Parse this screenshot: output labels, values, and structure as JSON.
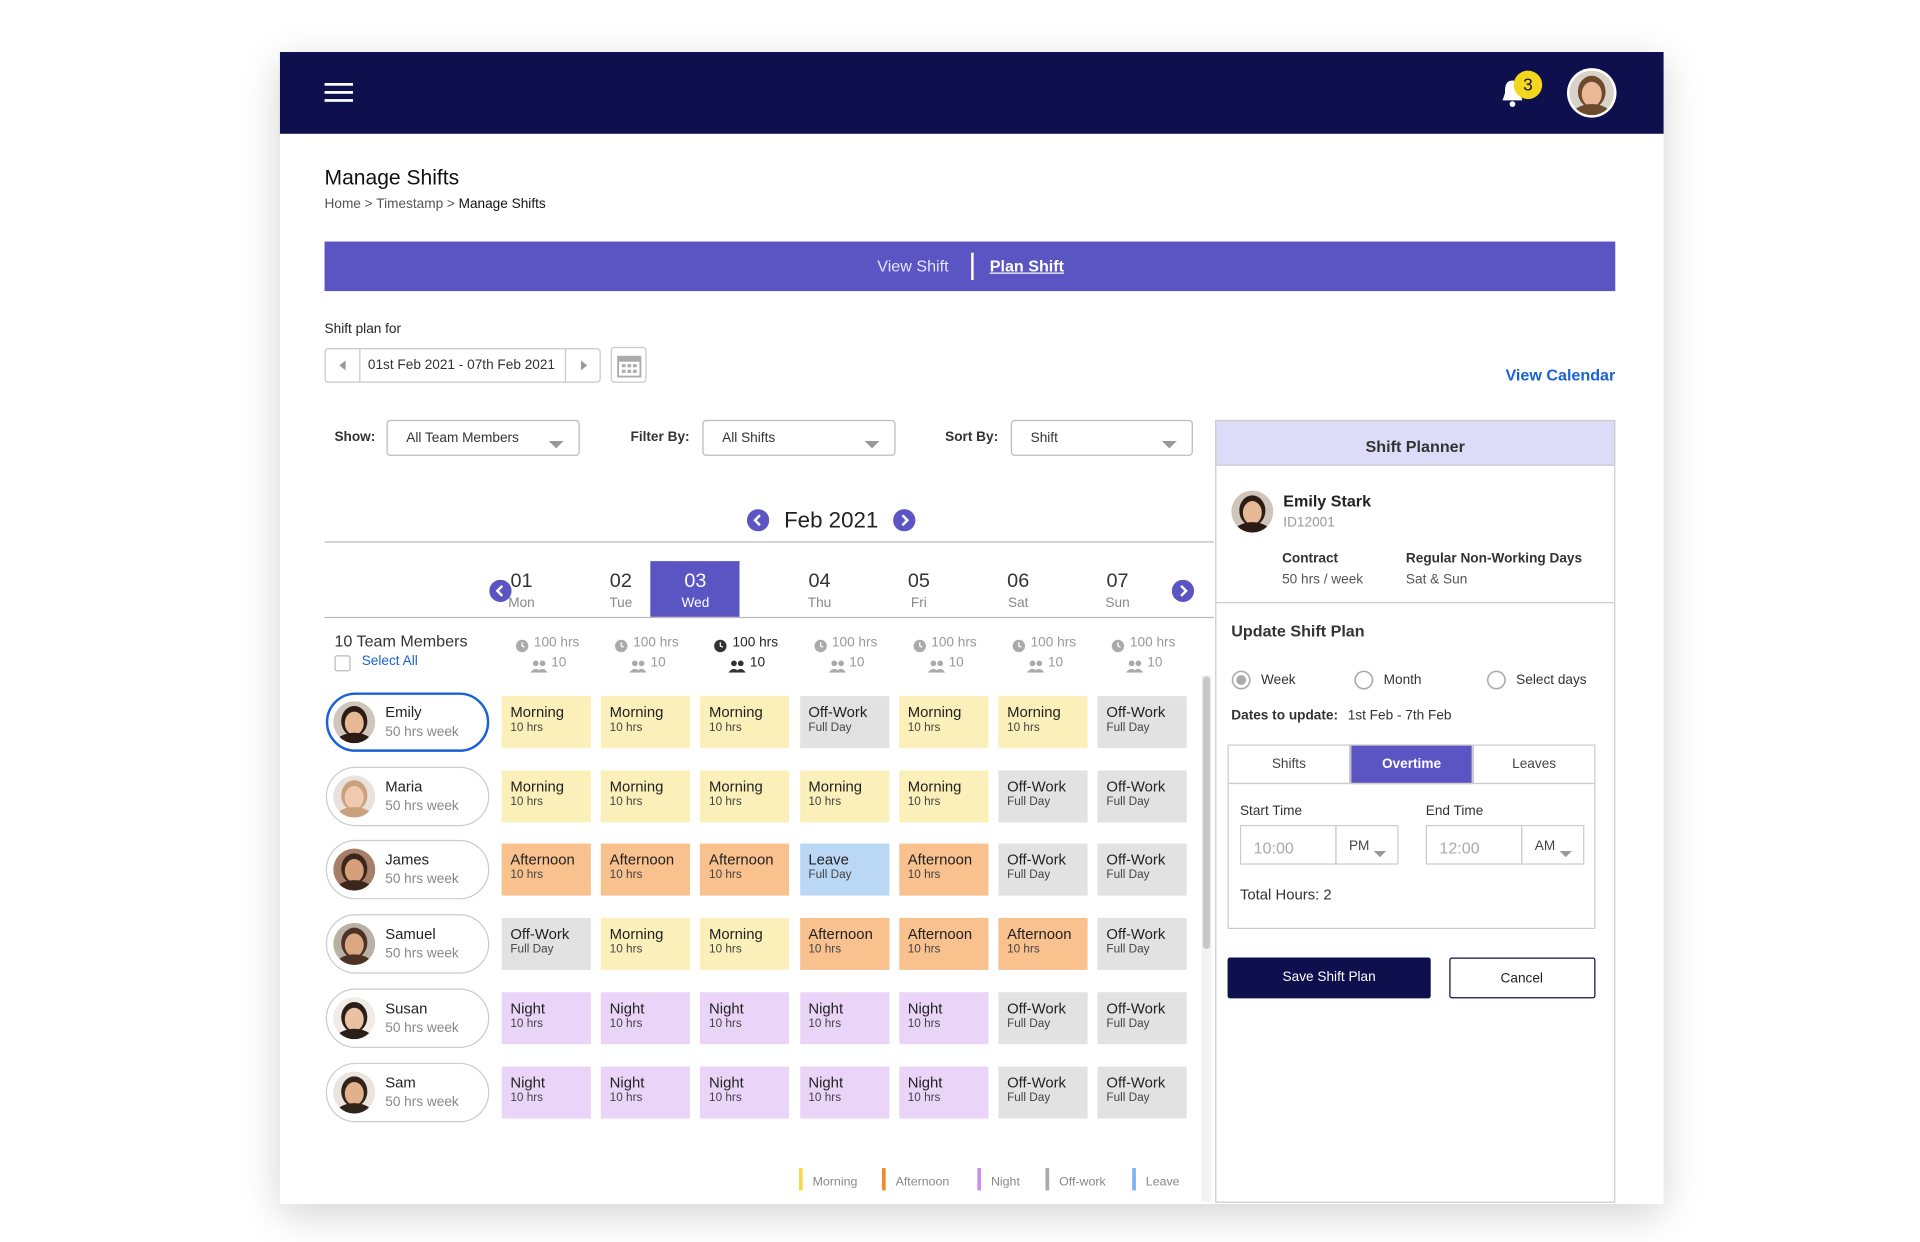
{
  "header": {
    "notifications": "3"
  },
  "page": {
    "title": "Manage Shifts",
    "breadcrumb": {
      "items": [
        "Home",
        "Timestamp",
        "Manage Shifts"
      ],
      "separator": ">"
    }
  },
  "tabs": [
    "View Shift",
    "Plan Shift"
  ],
  "shift_plan": {
    "label": "Shift plan for",
    "range": "01st Feb 2021 - 07th Feb 2021",
    "view_calendar": "View Calendar"
  },
  "filters": [
    {
      "label": "Show:",
      "value": "All Team Members"
    },
    {
      "label": "Filter By:",
      "value": "All Shifts"
    },
    {
      "label": "Sort By:",
      "value": "Shift"
    }
  ],
  "calendar": {
    "month": "Feb 2021",
    "selected": 2,
    "days": [
      {
        "date": "01",
        "day": "Mon",
        "hours": "100 hrs",
        "members": "10"
      },
      {
        "date": "02",
        "day": "Tue",
        "hours": "100 hrs",
        "members": "10"
      },
      {
        "date": "03",
        "day": "Wed",
        "hours": "100 hrs",
        "members": "10"
      },
      {
        "date": "04",
        "day": "Thu",
        "hours": "100 hrs",
        "members": "10"
      },
      {
        "date": "05",
        "day": "Fri",
        "hours": "100 hrs",
        "members": "10"
      },
      {
        "date": "06",
        "day": "Sat",
        "hours": "100 hrs",
        "members": "10"
      },
      {
        "date": "07",
        "day": "Sun",
        "hours": "100 hrs",
        "members": "10"
      }
    ]
  },
  "team": {
    "count": "10 Team Members",
    "select_all": "Select All"
  },
  "shift_colors": {
    "Morning": "#fbf0b9",
    "Afternoon": "#f9c18e",
    "Night": "#ead5f8",
    "Off-Work": "#e2e2e2",
    "Leave": "#bad7f6"
  },
  "members": [
    {
      "name": "Emily",
      "hours": "50 hrs week",
      "selected": true,
      "shifts": [
        {
          "type": "Morning",
          "detail": "10 hrs"
        },
        {
          "type": "Morning",
          "detail": "10 hrs"
        },
        {
          "type": "Morning",
          "detail": "10 hrs"
        },
        {
          "type": "Off-Work",
          "detail": "Full Day"
        },
        {
          "type": "Morning",
          "detail": "10 hrs"
        },
        {
          "type": "Morning",
          "detail": "10 hrs"
        },
        {
          "type": "Off-Work",
          "detail": "Full Day"
        }
      ]
    },
    {
      "name": "Maria",
      "hours": "50 hrs week",
      "selected": false,
      "shifts": [
        {
          "type": "Morning",
          "detail": "10 hrs"
        },
        {
          "type": "Morning",
          "detail": "10 hrs"
        },
        {
          "type": "Morning",
          "detail": "10 hrs"
        },
        {
          "type": "Morning",
          "detail": "10 hrs"
        },
        {
          "type": "Morning",
          "detail": "10 hrs"
        },
        {
          "type": "Off-Work",
          "detail": "Full Day"
        },
        {
          "type": "Off-Work",
          "detail": "Full Day"
        }
      ]
    },
    {
      "name": "James",
      "hours": "50 hrs week",
      "selected": false,
      "shifts": [
        {
          "type": "Afternoon",
          "detail": "10 hrs"
        },
        {
          "type": "Afternoon",
          "detail": "10 hrs"
        },
        {
          "type": "Afternoon",
          "detail": "10 hrs"
        },
        {
          "type": "Leave",
          "detail": "Full Day"
        },
        {
          "type": "Afternoon",
          "detail": "10 hrs"
        },
        {
          "type": "Off-Work",
          "detail": "Full Day"
        },
        {
          "type": "Off-Work",
          "detail": "Full Day"
        }
      ]
    },
    {
      "name": "Samuel",
      "hours": "50 hrs week",
      "selected": false,
      "shifts": [
        {
          "type": "Off-Work",
          "detail": "Full Day"
        },
        {
          "type": "Morning",
          "detail": "10 hrs"
        },
        {
          "type": "Morning",
          "detail": "10 hrs"
        },
        {
          "type": "Afternoon",
          "detail": "10 hrs"
        },
        {
          "type": "Afternoon",
          "detail": "10 hrs"
        },
        {
          "type": "Afternoon",
          "detail": "10 hrs"
        },
        {
          "type": "Off-Work",
          "detail": "Full Day"
        }
      ]
    },
    {
      "name": "Susan",
      "hours": "50 hrs week",
      "selected": false,
      "shifts": [
        {
          "type": "Night",
          "detail": "10 hrs"
        },
        {
          "type": "Night",
          "detail": "10 hrs"
        },
        {
          "type": "Night",
          "detail": "10 hrs"
        },
        {
          "type": "Night",
          "detail": "10 hrs"
        },
        {
          "type": "Night",
          "detail": "10 hrs"
        },
        {
          "type": "Off-Work",
          "detail": "Full Day"
        },
        {
          "type": "Off-Work",
          "detail": "Full Day"
        }
      ]
    },
    {
      "name": "Sam",
      "hours": "50 hrs week",
      "selected": false,
      "shifts": [
        {
          "type": "Night",
          "detail": "10 hrs"
        },
        {
          "type": "Night",
          "detail": "10 hrs"
        },
        {
          "type": "Night",
          "detail": "10 hrs"
        },
        {
          "type": "Night",
          "detail": "10 hrs"
        },
        {
          "type": "Night",
          "detail": "10 hrs"
        },
        {
          "type": "Off-Work",
          "detail": "Full Day"
        },
        {
          "type": "Off-Work",
          "detail": "Full Day"
        }
      ]
    }
  ],
  "legend": [
    {
      "label": "Morning",
      "color": "#f7d84a"
    },
    {
      "label": "Afternoon",
      "color": "#f08a2c"
    },
    {
      "label": "Night",
      "color": "#c98ef0"
    },
    {
      "label": "Off-work",
      "color": "#a9a9a9"
    },
    {
      "label": "Leave",
      "color": "#7fb4f0"
    }
  ],
  "planner": {
    "title": "Shift Planner",
    "employee": {
      "name": "Emily Stark",
      "id": "ID12001"
    },
    "contract_label": "Contract",
    "contract": "50 hrs / week",
    "nonworking_label": "Regular Non-Working Days",
    "nonworking": "Sat & Sun",
    "update_title": "Update Shift Plan",
    "options": [
      "Week",
      "Month",
      "Select days"
    ],
    "dates_label": "Dates to update:",
    "dates": "1st Feb - 7th Feb",
    "tabs": [
      "Shifts",
      "Overtime",
      "Leaves"
    ],
    "start_label": "Start Time",
    "start": "10:00",
    "start_period": "PM",
    "end_label": "End Time",
    "end": "12:00",
    "end_period": "AM",
    "total": "Total Hours: 2",
    "save": "Save Shift Plan",
    "cancel": "Cancel"
  }
}
